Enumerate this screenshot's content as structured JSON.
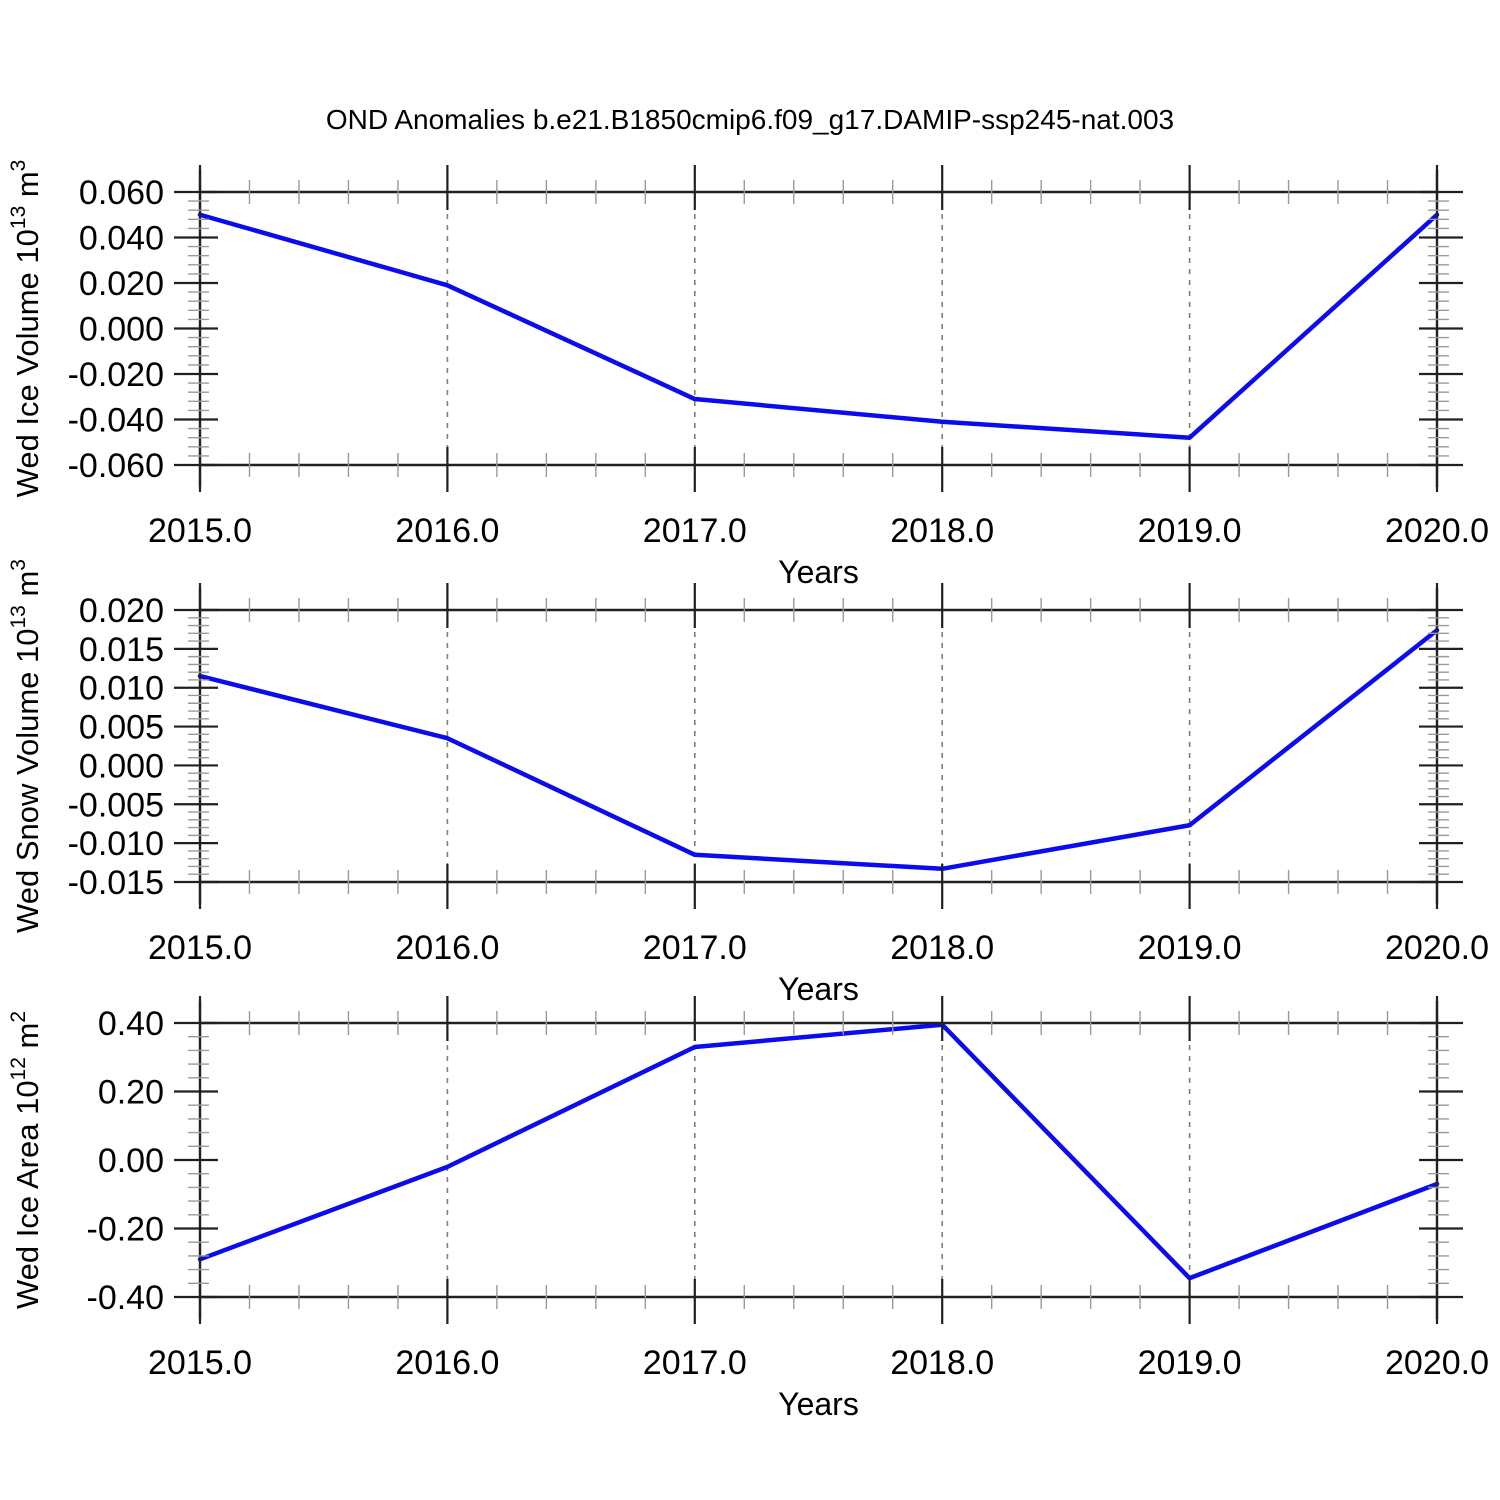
{
  "title": "OND Anomalies b.e21.B1850cmip6.f09_g17.DAMIP-ssp245-nat.003",
  "colors": {
    "background": "#ffffff",
    "line": "#0b0bed",
    "axis": "#202020",
    "minor_tick": "#9a9a9a",
    "dashed_grid": "#7e7e7e",
    "text": "#000000"
  },
  "chart_data": [
    {
      "type": "line",
      "panel": "wed-ice-volume",
      "ylabel": "Wed Ice Volume 10^13 m^3",
      "ylabel_segments": [
        {
          "text": "Wed Ice Volume 10"
        },
        {
          "text": "13",
          "sup": true
        },
        {
          "text": " m"
        },
        {
          "text": "3",
          "sup": true
        }
      ],
      "xlabel": "Years",
      "x": [
        2015,
        2016,
        2017,
        2018,
        2019,
        2020
      ],
      "values": [
        0.05,
        0.019,
        -0.031,
        -0.041,
        -0.048,
        0.05
      ],
      "xlim": [
        2015,
        2020
      ],
      "ylim": [
        -0.06,
        0.06
      ],
      "yticks": [
        0.06,
        0.04,
        0.02,
        0.0,
        -0.02,
        -0.04,
        -0.06
      ],
      "ytick_labels": [
        "0.060",
        "0.040",
        "0.020",
        "0.000",
        "-0.020",
        "-0.040",
        "-0.060"
      ],
      "xtick_labels": [
        "2015.0",
        "2016.0",
        "2017.0",
        "2018.0",
        "2019.0",
        "2020.0"
      ],
      "minor_x_step": 0.2,
      "minor_y_step": 0.004,
      "dashed_gridlines_x": [
        2016,
        2017,
        2018,
        2019
      ],
      "grid": "vertical-dashed",
      "legend": "none"
    },
    {
      "type": "line",
      "panel": "wed-snow-volume",
      "ylabel": "Wed Snow Volume 10^13 m^3",
      "ylabel_segments": [
        {
          "text": "Wed Snow Volume 10"
        },
        {
          "text": "13",
          "sup": true
        },
        {
          "text": " m"
        },
        {
          "text": "3",
          "sup": true
        }
      ],
      "xlabel": "Years",
      "x": [
        2015,
        2016,
        2017,
        2018,
        2019,
        2020
      ],
      "values": [
        0.0115,
        0.0035,
        -0.0115,
        -0.0133,
        -0.0077,
        0.0174
      ],
      "xlim": [
        2015,
        2020
      ],
      "ylim": [
        -0.015,
        0.02
      ],
      "yticks": [
        0.02,
        0.015,
        0.01,
        0.005,
        0.0,
        -0.005,
        -0.01,
        -0.015
      ],
      "ytick_labels": [
        "0.020",
        "0.015",
        "0.010",
        "0.005",
        "0.000",
        "-0.005",
        "-0.010",
        "-0.015"
      ],
      "xtick_labels": [
        "2015.0",
        "2016.0",
        "2017.0",
        "2018.0",
        "2019.0",
        "2020.0"
      ],
      "minor_x_step": 0.2,
      "minor_y_step": 0.001,
      "dashed_gridlines_x": [
        2016,
        2017,
        2018,
        2019
      ],
      "grid": "vertical-dashed",
      "legend": "none"
    },
    {
      "type": "line",
      "panel": "wed-ice-area",
      "ylabel": "Wed Ice Area 10^12 m^2",
      "ylabel_segments": [
        {
          "text": "Wed Ice Area 10"
        },
        {
          "text": "12",
          "sup": true
        },
        {
          "text": " m"
        },
        {
          "text": "2",
          "sup": true
        }
      ],
      "xlabel": "Years",
      "x": [
        2015,
        2016,
        2017,
        2018,
        2019,
        2020
      ],
      "values": [
        -0.29,
        -0.02,
        0.33,
        0.395,
        -0.345,
        -0.07
      ],
      "xlim": [
        2015,
        2020
      ],
      "ylim": [
        -0.4,
        0.4
      ],
      "yticks": [
        0.4,
        0.2,
        0.0,
        -0.2,
        -0.4
      ],
      "ytick_labels": [
        "0.40",
        "0.20",
        "0.00",
        "-0.20",
        "-0.40"
      ],
      "xtick_labels": [
        "2015.0",
        "2016.0",
        "2017.0",
        "2018.0",
        "2019.0",
        "2020.0"
      ],
      "minor_x_step": 0.2,
      "minor_y_step": 0.04,
      "dashed_gridlines_x": [
        2016,
        2017,
        2018,
        2019
      ],
      "grid": "vertical-dashed",
      "legend": "none"
    }
  ]
}
